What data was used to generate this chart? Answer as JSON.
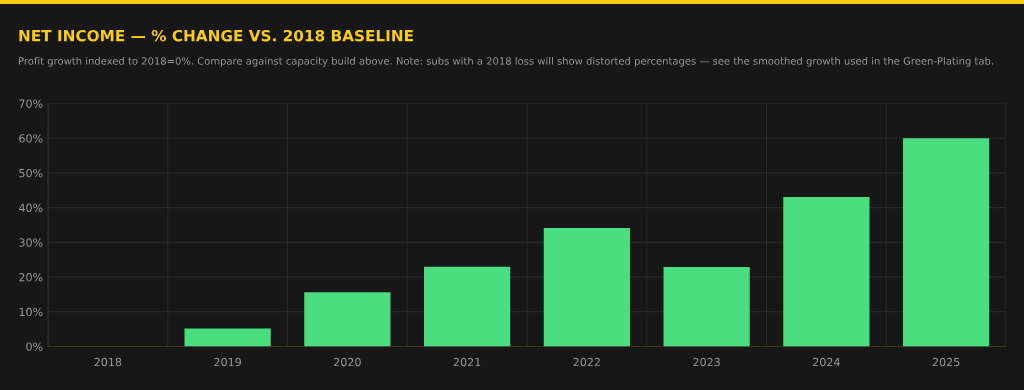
{
  "chart_data": {
    "type": "bar",
    "title": "NET INCOME — % CHANGE VS. 2018 BASELINE",
    "subtitle": "Profit growth indexed to 2018=0%. Compare against capacity build above. Note: subs with a 2018 loss will show distorted percentages — see the smoothed growth used in the Green-Plating tab.",
    "categories": [
      "2018",
      "2019",
      "2020",
      "2021",
      "2022",
      "2023",
      "2024",
      "2025"
    ],
    "values": [
      0,
      5.2,
      15.6,
      23.0,
      34.1,
      22.9,
      43.1,
      60.0
    ],
    "color": "#4ade80",
    "ylim": [
      0,
      70
    ],
    "yticks": [
      {
        "value": 0,
        "label": "0%"
      },
      {
        "value": 10,
        "label": "10%"
      },
      {
        "value": 20,
        "label": "20%"
      },
      {
        "value": 30,
        "label": "30%"
      },
      {
        "value": 40,
        "label": "40%"
      },
      {
        "value": 50,
        "label": "50%"
      },
      {
        "value": 60,
        "label": "60%"
      },
      {
        "value": 70,
        "label": "70%"
      }
    ],
    "grid": true,
    "legend": false
  }
}
